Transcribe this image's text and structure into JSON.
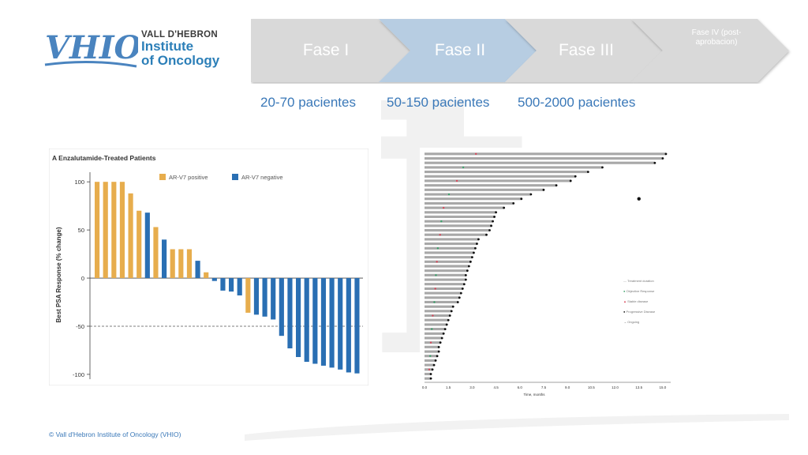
{
  "logo": {
    "mark": "VHIO",
    "line1": "VALL D'HEBRON",
    "line2": "Institute",
    "line3": "of Oncology"
  },
  "phases": [
    {
      "label": "Fase I",
      "patients": "20-70 pacientes",
      "active": false
    },
    {
      "label": "Fase II",
      "patients": "50-150 pacientes",
      "active": true
    },
    {
      "label": "Fase III",
      "patients": "500-2000 pacientes",
      "active": false
    },
    {
      "label": "Fase IV (post-aprobacion)",
      "patients": "",
      "active": false
    }
  ],
  "colors": {
    "phase_inactive": "#d9d9d9",
    "phase_active": "#b7cde2",
    "accent_blue": "#3a78b8",
    "bar_positive": "#e7ad4d",
    "bar_negative": "#2a6fb3"
  },
  "chart_data": [
    {
      "type": "bar",
      "title": "A  Enzalutamide-Treated Patients",
      "ylabel": "Best PSA Response (% change)",
      "ylim": [
        -105,
        110
      ],
      "yticks": [
        "100",
        "50",
        "0",
        "-50",
        "-100"
      ],
      "yticks_values": [
        100,
        50,
        0,
        -50,
        -100
      ],
      "reference_line": -50,
      "legend": [
        "AR-V7 positive",
        "AR-V7 negative"
      ],
      "values": [
        100,
        100,
        100,
        100,
        88,
        70,
        68,
        53,
        40,
        30,
        30,
        30,
        18,
        6,
        -3,
        -13,
        -14,
        -18,
        -36,
        -38,
        -40,
        -43,
        -60,
        -73,
        -82,
        -87,
        -89,
        -91,
        -93,
        -95,
        -98,
        -99
      ],
      "groups": [
        0,
        0,
        0,
        0,
        0,
        0,
        1,
        0,
        1,
        0,
        0,
        0,
        1,
        0,
        1,
        1,
        1,
        1,
        0,
        1,
        1,
        1,
        1,
        1,
        1,
        1,
        1,
        1,
        1,
        1,
        1,
        1
      ]
    },
    {
      "type": "swimmer",
      "xlabel": "Time, months",
      "xticks": [
        "0.0",
        "1.5",
        "3.0",
        "4.5",
        "6.0",
        "7.5",
        "9.0",
        "10.5",
        "12.0",
        "13.5",
        "15.0"
      ],
      "xlim": [
        0,
        15.5
      ],
      "legend": [
        "Treatment duration",
        "Objective Response",
        "Stable disease",
        "Progressive Disease",
        "Ongoing"
      ],
      "durations": [
        15.2,
        15.0,
        14.5,
        11.2,
        10.3,
        9.5,
        9.2,
        8.3,
        7.5,
        6.7,
        6.1,
        5.6,
        5.0,
        4.5,
        4.4,
        4.3,
        4.2,
        4.1,
        3.9,
        3.4,
        3.3,
        3.2,
        3.1,
        3.0,
        2.9,
        2.8,
        2.7,
        2.6,
        2.6,
        2.5,
        2.4,
        2.3,
        2.2,
        2.1,
        1.8,
        1.7,
        1.6,
        1.5,
        1.4,
        1.3,
        1.2,
        1.1,
        1.0,
        0.9,
        0.9,
        0.8,
        0.7,
        0.6,
        0.5,
        0.4,
        0.4
      ],
      "outlier": [
        13.5,
        10
      ]
    }
  ],
  "footer": {
    "copyright": "© Vall d'Hebron Institute of Oncology (VHIO)"
  }
}
